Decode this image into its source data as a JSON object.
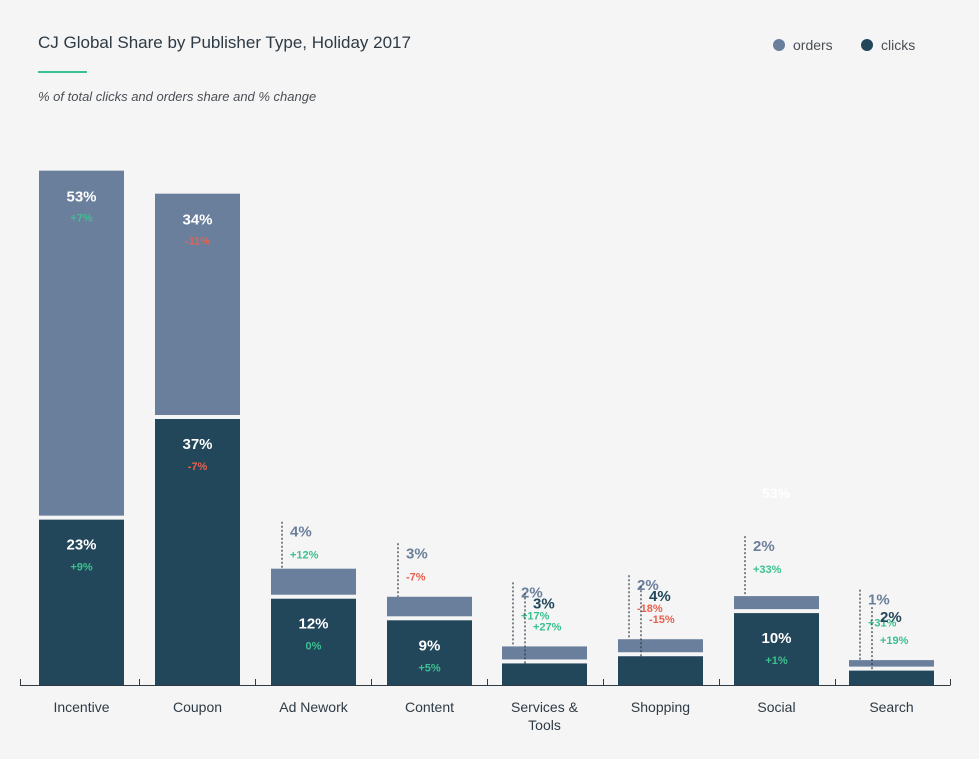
{
  "header": {
    "title": "CJ Global Share by Publisher Type, Holiday 2017",
    "subtitle": "% of total clicks and orders share and % change"
  },
  "legend": [
    {
      "label": "orders",
      "color": "#6a7f9c"
    },
    {
      "label": "clicks",
      "color": "#22465a"
    }
  ],
  "stray_label": "53%",
  "colors": {
    "orders": "#6a7f9c",
    "clicks": "#22465a",
    "positive": "#3bc18f",
    "negative": "#e8614f",
    "axis": "#2e3a44"
  },
  "chart_data": {
    "type": "bar",
    "title": "CJ Global Share by Publisher Type, Holiday 2017",
    "subtitle": "% of total clicks and orders share and % change",
    "unit": "%",
    "categories": [
      "Incentive",
      "Coupon",
      "Ad Nework",
      "Content",
      "Services & Tools",
      "Shopping",
      "Social",
      "Search"
    ],
    "category_label_lines": [
      [
        "Incentive"
      ],
      [
        "Coupon"
      ],
      [
        "Ad Nework"
      ],
      [
        "Content"
      ],
      [
        "Services &",
        "Tools"
      ],
      [
        "Shopping"
      ],
      [
        "Social"
      ],
      [
        "Search"
      ]
    ],
    "series": [
      {
        "name": "orders",
        "values": [
          53,
          34,
          4,
          3,
          2,
          2,
          2,
          1
        ],
        "labels": [
          "53%",
          "34%",
          "4%",
          "3%",
          "2%",
          "2%",
          "2%",
          "1%"
        ],
        "change": [
          "+7%",
          "-11%",
          "+12%",
          "-7%",
          "+17%",
          "-18%",
          "+33%",
          "+31%"
        ]
      },
      {
        "name": "clicks",
        "values": [
          23,
          37,
          12,
          9,
          3,
          4,
          10,
          2
        ],
        "labels": [
          "23%",
          "37%",
          "12%",
          "9%",
          "3%",
          "4%",
          "10%",
          "2%"
        ],
        "change": [
          "+9%",
          "-7%",
          "0%",
          "+5%",
          "+27%",
          "-15%",
          "+1%",
          "+19%"
        ]
      }
    ],
    "grid": false,
    "legend_position": "top-right"
  }
}
